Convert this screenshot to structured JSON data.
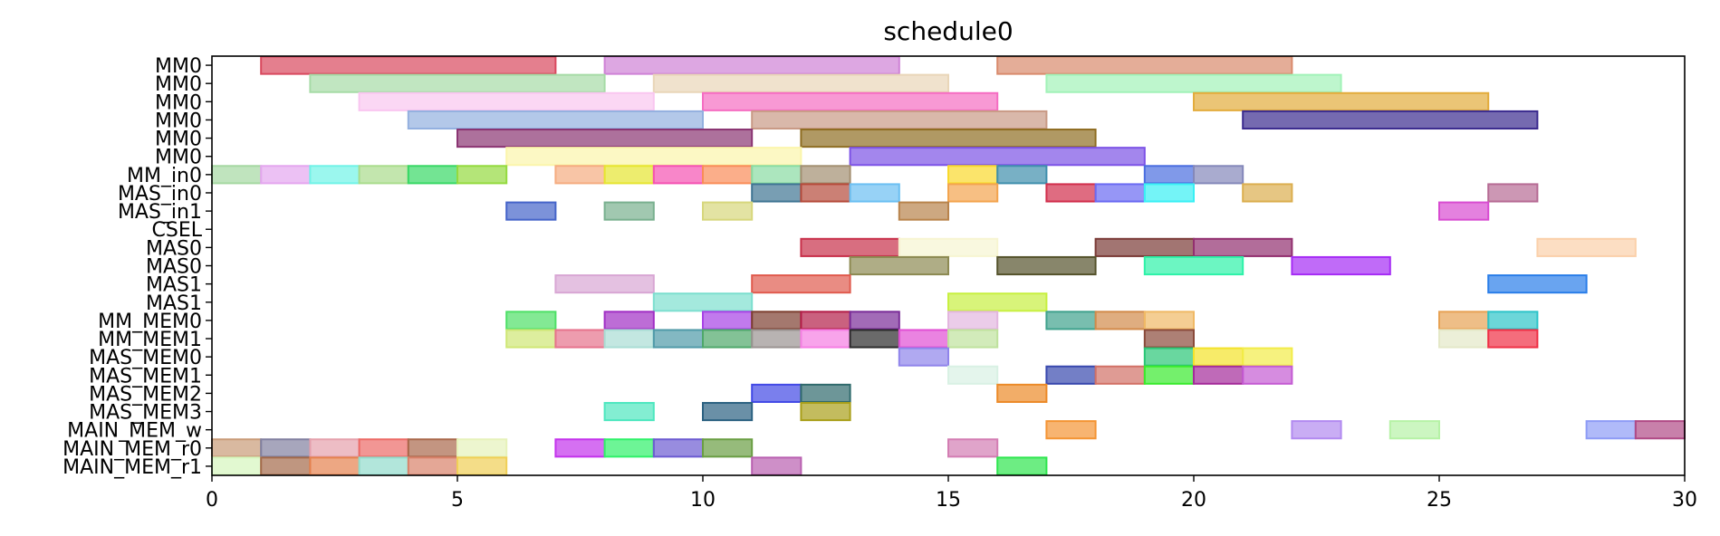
{
  "chart_data": {
    "type": "gantt",
    "title": "schedule0",
    "xlim": [
      0,
      30
    ],
    "xticks": [
      0,
      5,
      10,
      15,
      20,
      25,
      30
    ],
    "rows": [
      "MM0",
      "MM0",
      "MM0",
      "MM0",
      "MM0",
      "MM0",
      "MM_in0",
      "MAS_in0",
      "MAS_in1",
      "CSEL",
      "MAS0",
      "MAS0",
      "MAS1",
      "MAS1",
      "MM_MEM0",
      "MM_MEM1",
      "MAS_MEM0",
      "MAS_MEM1",
      "MAS_MEM2",
      "MAS_MEM3",
      "MAIN_MEM_w",
      "MAIN_MEM_r0",
      "MAIN_MEM_r1"
    ],
    "tasks": [
      {
        "row": 0,
        "start": 1,
        "end": 7,
        "color": "#d9495e"
      },
      {
        "row": 0,
        "start": 8,
        "end": 14,
        "color": "#cf82d6"
      },
      {
        "row": 0,
        "start": 16,
        "end": 22,
        "color": "#d98a6c"
      },
      {
        "row": 1,
        "start": 2,
        "end": 8,
        "color": "#a6dba6"
      },
      {
        "row": 1,
        "start": 9,
        "end": 15,
        "color": "#e9d6b8"
      },
      {
        "row": 1,
        "start": 17,
        "end": 23,
        "color": "#a2f2b8"
      },
      {
        "row": 2,
        "start": 3,
        "end": 9,
        "color": "#f9c6f0"
      },
      {
        "row": 2,
        "start": 10,
        "end": 16,
        "color": "#f56dc2"
      },
      {
        "row": 2,
        "start": 20,
        "end": 26,
        "color": "#e3ac3c"
      },
      {
        "row": 3,
        "start": 4,
        "end": 10,
        "color": "#93b0df"
      },
      {
        "row": 3,
        "start": 11,
        "end": 17,
        "color": "#c99a86"
      },
      {
        "row": 3,
        "start": 21,
        "end": 27,
        "color": "#3b2b8f"
      },
      {
        "row": 4,
        "start": 5,
        "end": 11,
        "color": "#8a3472"
      },
      {
        "row": 4,
        "start": 12,
        "end": 18,
        "color": "#8f6d22"
      },
      {
        "row": 5,
        "start": 6,
        "end": 12,
        "color": "#fbf5ab"
      },
      {
        "row": 5,
        "start": 13,
        "end": 19,
        "color": "#7c52e6"
      },
      {
        "row": 6,
        "start": 0,
        "end": 1,
        "color": "#a5d8a2"
      },
      {
        "row": 6,
        "start": 1,
        "end": 2,
        "color": "#e4a6ef"
      },
      {
        "row": 6,
        "start": 2,
        "end": 3,
        "color": "#71f3e7"
      },
      {
        "row": 6,
        "start": 3,
        "end": 4,
        "color": "#a9dc8c"
      },
      {
        "row": 6,
        "start": 4,
        "end": 5,
        "color": "#38d865"
      },
      {
        "row": 6,
        "start": 5,
        "end": 6,
        "color": "#94da3e"
      },
      {
        "row": 6,
        "start": 7,
        "end": 8,
        "color": "#f5ac80"
      },
      {
        "row": 6,
        "start": 8,
        "end": 9,
        "color": "#e6e530"
      },
      {
        "row": 6,
        "start": 9,
        "end": 10,
        "color": "#f552b2"
      },
      {
        "row": 6,
        "start": 10,
        "end": 11,
        "color": "#f98c58"
      },
      {
        "row": 6,
        "start": 11,
        "end": 12,
        "color": "#89dca2"
      },
      {
        "row": 6,
        "start": 12,
        "end": 13,
        "color": "#a38f71"
      },
      {
        "row": 6,
        "start": 15,
        "end": 16,
        "color": "#f9d92c"
      },
      {
        "row": 6,
        "start": 16,
        "end": 17,
        "color": "#3f8fad"
      },
      {
        "row": 6,
        "start": 19,
        "end": 20,
        "color": "#4a6de0"
      },
      {
        "row": 6,
        "start": 20,
        "end": 21,
        "color": "#8488ba"
      },
      {
        "row": 7,
        "start": 11,
        "end": 12,
        "color": "#3f7593"
      },
      {
        "row": 7,
        "start": 12,
        "end": 13,
        "color": "#b54a3a"
      },
      {
        "row": 7,
        "start": 13,
        "end": 14,
        "color": "#6bbff2"
      },
      {
        "row": 7,
        "start": 15,
        "end": 16,
        "color": "#f3a44e"
      },
      {
        "row": 7,
        "start": 17,
        "end": 18,
        "color": "#d12e4b"
      },
      {
        "row": 7,
        "start": 18,
        "end": 19,
        "color": "#6a6af2"
      },
      {
        "row": 7,
        "start": 19,
        "end": 20,
        "color": "#39f0f4"
      },
      {
        "row": 7,
        "start": 21,
        "end": 22,
        "color": "#dbae4e"
      },
      {
        "row": 7,
        "start": 26,
        "end": 27,
        "color": "#b66b94"
      },
      {
        "row": 8,
        "start": 6,
        "end": 7,
        "color": "#4564c9"
      },
      {
        "row": 8,
        "start": 8,
        "end": 9,
        "color": "#79b08f"
      },
      {
        "row": 8,
        "start": 10,
        "end": 11,
        "color": "#d7d77c"
      },
      {
        "row": 8,
        "start": 14,
        "end": 15,
        "color": "#b8834b"
      },
      {
        "row": 8,
        "start": 25,
        "end": 26,
        "color": "#d84cd1"
      },
      {
        "row": 10,
        "start": 12,
        "end": 14,
        "color": "#c8304a"
      },
      {
        "row": 10,
        "start": 14,
        "end": 16,
        "color": "#f7f5d2"
      },
      {
        "row": 10,
        "start": 18,
        "end": 20,
        "color": "#7a3a36"
      },
      {
        "row": 10,
        "start": 20,
        "end": 22,
        "color": "#922f6f"
      },
      {
        "row": 10,
        "start": 27,
        "end": 29,
        "color": "#fbd0aa"
      },
      {
        "row": 11,
        "start": 13,
        "end": 15,
        "color": "#8d8a52"
      },
      {
        "row": 11,
        "start": 16,
        "end": 18,
        "color": "#55532c"
      },
      {
        "row": 11,
        "start": 19,
        "end": 21,
        "color": "#2ef2a8"
      },
      {
        "row": 11,
        "start": 22,
        "end": 24,
        "color": "#a52cf5"
      },
      {
        "row": 12,
        "start": 7,
        "end": 9,
        "color": "#d8a6d4"
      },
      {
        "row": 12,
        "start": 11,
        "end": 13,
        "color": "#e05b4e"
      },
      {
        "row": 12,
        "start": 26,
        "end": 28,
        "color": "#2a7ee9"
      },
      {
        "row": 13,
        "start": 9,
        "end": 11,
        "color": "#7ddfcf"
      },
      {
        "row": 13,
        "start": 15,
        "end": 17,
        "color": "#c8f041"
      },
      {
        "row": 14,
        "start": 6,
        "end": 7,
        "color": "#4ee067"
      },
      {
        "row": 14,
        "start": 8,
        "end": 9,
        "color": "#a12fc4"
      },
      {
        "row": 14,
        "start": 10,
        "end": 11,
        "color": "#a742e6"
      },
      {
        "row": 14,
        "start": 11,
        "end": 12,
        "color": "#7d3f30"
      },
      {
        "row": 14,
        "start": 12,
        "end": 13,
        "color": "#b31e48"
      },
      {
        "row": 14,
        "start": 13,
        "end": 14,
        "color": "#7a2c98"
      },
      {
        "row": 14,
        "start": 15,
        "end": 16,
        "color": "#e3b6df"
      },
      {
        "row": 14,
        "start": 17,
        "end": 18,
        "color": "#3fa28d"
      },
      {
        "row": 14,
        "start": 18,
        "end": 19,
        "color": "#d28a4a"
      },
      {
        "row": 14,
        "start": 19,
        "end": 20,
        "color": "#f0b965"
      },
      {
        "row": 14,
        "start": 25,
        "end": 26,
        "color": "#e7a254"
      },
      {
        "row": 14,
        "start": 26,
        "end": 27,
        "color": "#2ec4c9"
      },
      {
        "row": 15,
        "start": 6,
        "end": 7,
        "color": "#cfe775"
      },
      {
        "row": 15,
        "start": 7,
        "end": 8,
        "color": "#e6728c"
      },
      {
        "row": 15,
        "start": 8,
        "end": 9,
        "color": "#a9ddd4"
      },
      {
        "row": 15,
        "start": 9,
        "end": 10,
        "color": "#4f9aa8"
      },
      {
        "row": 15,
        "start": 10,
        "end": 11,
        "color": "#4ea86a"
      },
      {
        "row": 15,
        "start": 11,
        "end": 12,
        "color": "#9a9391"
      },
      {
        "row": 15,
        "start": 12,
        "end": 13,
        "color": "#f57ee3"
      },
      {
        "row": 15,
        "start": 13,
        "end": 14,
        "color": "#2b2b2b"
      },
      {
        "row": 15,
        "start": 14,
        "end": 15,
        "color": "#e14fd4"
      },
      {
        "row": 15,
        "start": 15,
        "end": 16,
        "color": "#bfe29d"
      },
      {
        "row": 15,
        "start": 19,
        "end": 20,
        "color": "#8a4a3a"
      },
      {
        "row": 15,
        "start": 25,
        "end": 26,
        "color": "#e4e8c8"
      },
      {
        "row": 15,
        "start": 26,
        "end": 27,
        "color": "#ef2f45"
      },
      {
        "row": 16,
        "start": 14,
        "end": 15,
        "color": "#8f84eb"
      },
      {
        "row": 16,
        "start": 19,
        "end": 20,
        "color": "#29c676"
      },
      {
        "row": 16,
        "start": 20,
        "end": 21,
        "color": "#f4e22a"
      },
      {
        "row": 16,
        "start": 21,
        "end": 22,
        "color": "#f2ec48"
      },
      {
        "row": 17,
        "start": 15,
        "end": 16,
        "color": "#d9f1e4"
      },
      {
        "row": 17,
        "start": 17,
        "end": 18,
        "color": "#3848ae"
      },
      {
        "row": 17,
        "start": 18,
        "end": 19,
        "color": "#d27166"
      },
      {
        "row": 17,
        "start": 19,
        "end": 20,
        "color": "#39ea2d"
      },
      {
        "row": 17,
        "start": 20,
        "end": 21,
        "color": "#a42b9a"
      },
      {
        "row": 17,
        "start": 21,
        "end": 22,
        "color": "#c45bd3"
      },
      {
        "row": 18,
        "start": 11,
        "end": 12,
        "color": "#4249e6"
      },
      {
        "row": 18,
        "start": 12,
        "end": 13,
        "color": "#2f6a6c"
      },
      {
        "row": 18,
        "start": 16,
        "end": 17,
        "color": "#ec8a28"
      },
      {
        "row": 19,
        "start": 8,
        "end": 9,
        "color": "#4ee7bf"
      },
      {
        "row": 19,
        "start": 10,
        "end": 11,
        "color": "#2b6181"
      },
      {
        "row": 19,
        "start": 12,
        "end": 13,
        "color": "#a99f1a"
      },
      {
        "row": 20,
        "start": 17,
        "end": 18,
        "color": "#f49434"
      },
      {
        "row": 20,
        "start": 22,
        "end": 23,
        "color": "#b28af0"
      },
      {
        "row": 20,
        "start": 24,
        "end": 25,
        "color": "#b6f2a6"
      },
      {
        "row": 20,
        "start": 28,
        "end": 29,
        "color": "#8e9cf6"
      },
      {
        "row": 20,
        "start": 29,
        "end": 30,
        "color": "#b04a86"
      },
      {
        "row": 21,
        "start": 0,
        "end": 1,
        "color": "#c99b77"
      },
      {
        "row": 21,
        "start": 1,
        "end": 2,
        "color": "#8180a0"
      },
      {
        "row": 21,
        "start": 2,
        "end": 3,
        "color": "#e5a1ad"
      },
      {
        "row": 21,
        "start": 3,
        "end": 4,
        "color": "#ec6a66"
      },
      {
        "row": 21,
        "start": 4,
        "end": 5,
        "color": "#a9684b"
      },
      {
        "row": 21,
        "start": 5,
        "end": 6,
        "color": "#e6f2ba"
      },
      {
        "row": 21,
        "start": 7,
        "end": 8,
        "color": "#c333ec"
      },
      {
        "row": 21,
        "start": 8,
        "end": 9,
        "color": "#2ff169"
      },
      {
        "row": 21,
        "start": 9,
        "end": 10,
        "color": "#6c5bd1"
      },
      {
        "row": 21,
        "start": 10,
        "end": 11,
        "color": "#6a9e43"
      },
      {
        "row": 21,
        "start": 15,
        "end": 16,
        "color": "#d37db3"
      },
      {
        "row": 22,
        "start": 0,
        "end": 1,
        "color": "#d5f6bd"
      },
      {
        "row": 22,
        "start": 1,
        "end": 2,
        "color": "#a46a4a"
      },
      {
        "row": 22,
        "start": 2,
        "end": 3,
        "color": "#e5824f"
      },
      {
        "row": 22,
        "start": 3,
        "end": 4,
        "color": "#92dccc"
      },
      {
        "row": 22,
        "start": 4,
        "end": 5,
        "color": "#d9826a"
      },
      {
        "row": 22,
        "start": 5,
        "end": 6,
        "color": "#f0cf56"
      },
      {
        "row": 22,
        "start": 11,
        "end": 12,
        "color": "#b960b0"
      },
      {
        "row": 22,
        "start": 16,
        "end": 17,
        "color": "#2fe64f"
      }
    ]
  }
}
